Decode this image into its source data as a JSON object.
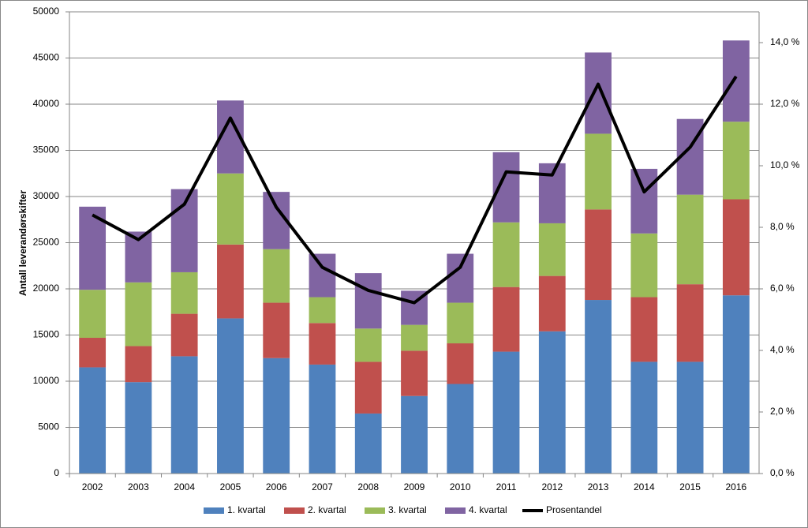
{
  "chart_data": {
    "type": "bar",
    "stacked": true,
    "y_label": "Antall leverandørskifter",
    "categories": [
      "2002",
      "2003",
      "2004",
      "2005",
      "2006",
      "2007",
      "2008",
      "2009",
      "2010",
      "2011",
      "2012",
      "2013",
      "2014",
      "2015",
      "2016"
    ],
    "series": [
      {
        "name": "1. kvartal",
        "color": "#4f81bd",
        "values": [
          11500,
          9900,
          12700,
          16800,
          12500,
          11800,
          6500,
          8400,
          9700,
          13200,
          15400,
          18800,
          12100,
          12100,
          19300
        ]
      },
      {
        "name": "2. kvartal",
        "color": "#c0504d",
        "values": [
          3200,
          3900,
          4600,
          8000,
          6000,
          4500,
          5600,
          4900,
          4400,
          7000,
          6000,
          9800,
          7000,
          8400,
          10400
        ]
      },
      {
        "name": "3. kvartal",
        "color": "#9bbb59",
        "values": [
          5200,
          6900,
          4500,
          7700,
          5800,
          2800,
          3600,
          2800,
          4400,
          7000,
          5700,
          8200,
          6900,
          9700,
          8400
        ]
      },
      {
        "name": "4. kvartal",
        "color": "#8064a2",
        "values": [
          9000,
          5500,
          9000,
          7900,
          6200,
          4700,
          6000,
          3700,
          5300,
          7600,
          6500,
          8800,
          7000,
          8200,
          8800
        ]
      },
      {
        "name": "Prosentandel",
        "type": "line",
        "axis": "y2",
        "color": "#000000",
        "values": [
          8.4,
          7.6,
          8.75,
          11.55,
          8.65,
          6.7,
          5.95,
          5.55,
          6.7,
          9.8,
          9.7,
          12.65,
          9.15,
          10.6,
          12.9
        ]
      }
    ],
    "ylim": [
      0,
      50000
    ],
    "yticks": [
      0,
      5000,
      10000,
      15000,
      20000,
      25000,
      30000,
      35000,
      40000,
      45000,
      50000
    ],
    "y2lim": [
      0,
      15
    ],
    "y2ticks": [
      {
        "value": 0,
        "label": "0,0 %"
      },
      {
        "value": 2,
        "label": "2,0 %"
      },
      {
        "value": 4,
        "label": "4,0 %"
      },
      {
        "value": 6,
        "label": "6,0 %"
      },
      {
        "value": 8,
        "label": "8,0 %"
      },
      {
        "value": 10,
        "label": "10,0 %"
      },
      {
        "value": 12,
        "label": "12,0 %"
      },
      {
        "value": 14,
        "label": "14,0 %"
      }
    ],
    "grid": true,
    "legend": "bottom"
  }
}
